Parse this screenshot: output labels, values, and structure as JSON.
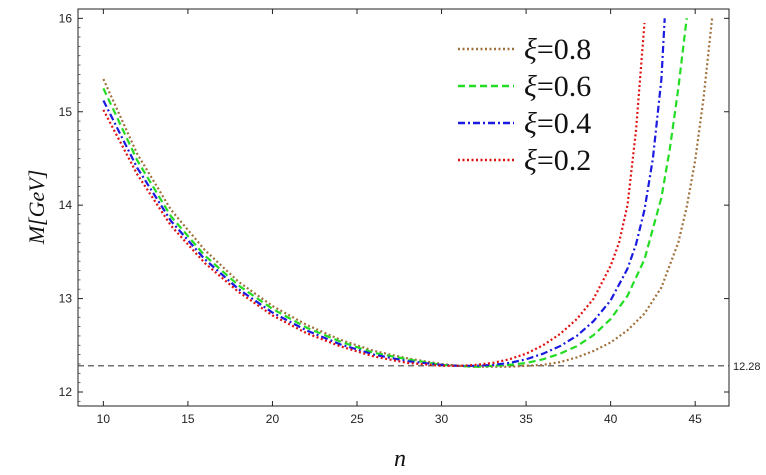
{
  "chart_data": {
    "type": "line",
    "xlabel": "n",
    "ylabel": "M[GeV]",
    "xlim": [
      8.5,
      47
    ],
    "ylim": [
      11.85,
      16.1
    ],
    "x_ticks": [
      "10",
      "15",
      "20",
      "25",
      "30",
      "35",
      "40",
      "45"
    ],
    "y_ticks": [
      "12",
      "13",
      "14",
      "15",
      "16"
    ],
    "x_tick_values": [
      10,
      15,
      20,
      25,
      30,
      35,
      40,
      45
    ],
    "y_tick_values": [
      12,
      13,
      14,
      15,
      16
    ],
    "reference_line": {
      "y": 12.28,
      "label": "12.28",
      "color": "#444444"
    },
    "legend_position": "top-right",
    "series": [
      {
        "name": "ξ=0.8",
        "legend_symbol": "ξ",
        "legend_value": "=0.8",
        "color": "#a0703c",
        "dash": "2,2.5",
        "x": [
          10,
          12,
          14,
          16,
          18,
          20,
          22,
          24,
          26,
          28,
          30,
          31,
          32,
          33,
          34,
          35,
          36,
          37,
          38,
          39,
          40,
          41,
          42,
          43,
          44,
          44.5,
          45,
          45.5,
          46
        ],
        "y": [
          15.35,
          14.55,
          13.95,
          13.52,
          13.18,
          12.92,
          12.72,
          12.56,
          12.44,
          12.36,
          12.3,
          12.28,
          12.27,
          12.27,
          12.27,
          12.28,
          12.29,
          12.32,
          12.37,
          12.44,
          12.53,
          12.66,
          12.84,
          13.12,
          13.6,
          13.98,
          14.48,
          15.15,
          16.0
        ]
      },
      {
        "name": "ξ=0.6",
        "legend_symbol": "ξ",
        "legend_value": "=0.6",
        "color": "#22dd22",
        "dash": "7,4",
        "x": [
          10,
          12,
          14,
          16,
          18,
          20,
          22,
          24,
          26,
          28,
          30,
          31,
          32,
          33,
          34,
          35,
          36,
          37,
          38,
          39,
          40,
          41,
          42,
          43,
          43.5,
          44,
          44.5
        ],
        "y": [
          15.25,
          14.48,
          13.88,
          13.46,
          13.14,
          12.89,
          12.69,
          12.54,
          12.42,
          12.35,
          12.29,
          12.28,
          12.27,
          12.28,
          12.29,
          12.31,
          12.35,
          12.41,
          12.49,
          12.61,
          12.78,
          13.03,
          13.42,
          14.08,
          14.6,
          15.25,
          16.0
        ]
      },
      {
        "name": "ξ=0.4",
        "legend_symbol": "ξ",
        "legend_value": "=0.4",
        "color": "#1a1ae0",
        "dash": "7,3,2,3",
        "x": [
          10,
          12,
          14,
          16,
          18,
          20,
          22,
          24,
          26,
          28,
          30,
          31,
          32,
          33,
          34,
          35,
          36,
          37,
          38,
          39,
          40,
          41,
          41.5,
          42,
          42.5,
          43,
          43.2
        ],
        "y": [
          15.12,
          14.4,
          13.83,
          13.42,
          13.1,
          12.85,
          12.66,
          12.51,
          12.4,
          12.33,
          12.29,
          12.28,
          12.28,
          12.29,
          12.31,
          12.35,
          12.41,
          12.49,
          12.6,
          12.76,
          12.98,
          13.32,
          13.58,
          13.95,
          14.5,
          15.35,
          16.0
        ]
      },
      {
        "name": "ξ=0.2",
        "legend_symbol": "ξ",
        "legend_value": "=0.2",
        "color": "#e01010",
        "dash": "2,2.5",
        "x": [
          10,
          12,
          14,
          16,
          18,
          20,
          22,
          24,
          26,
          28,
          30,
          31,
          32,
          33,
          34,
          35,
          36,
          37,
          38,
          39,
          40,
          40.5,
          41,
          41.5,
          42
        ],
        "y": [
          15.02,
          14.33,
          13.78,
          13.38,
          13.07,
          12.82,
          12.63,
          12.49,
          12.38,
          12.31,
          12.28,
          12.28,
          12.29,
          12.31,
          12.35,
          12.41,
          12.5,
          12.62,
          12.78,
          13.0,
          13.35,
          13.6,
          14.0,
          14.8,
          15.95
        ]
      }
    ]
  }
}
